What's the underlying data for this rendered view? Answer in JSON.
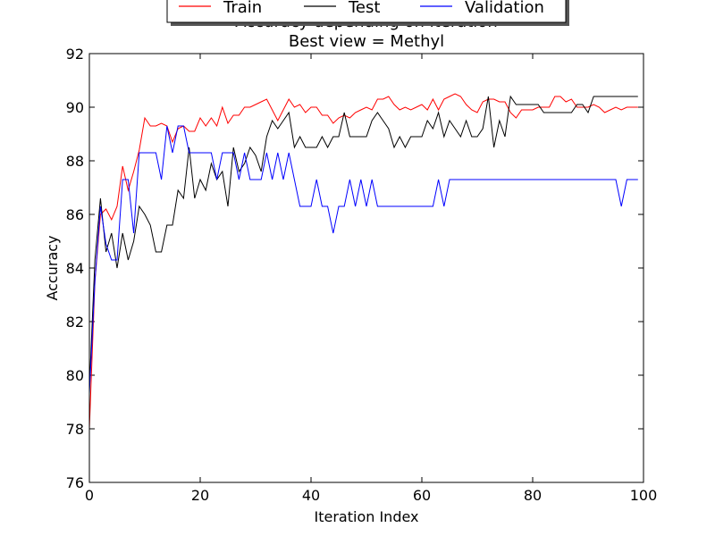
{
  "chart_data": {
    "type": "line",
    "title": "Accuracy depending on iteration",
    "subtitle": "Best view = Methyl",
    "xlabel": "Iteration Index",
    "ylabel": "Accuracy",
    "xlim": [
      0,
      100
    ],
    "ylim": [
      76,
      92
    ],
    "xticks": [
      0,
      20,
      40,
      60,
      80,
      100
    ],
    "yticks": [
      76,
      78,
      80,
      82,
      84,
      86,
      88,
      90,
      92
    ],
    "grid": false,
    "legend_position": "top-center",
    "series": [
      {
        "name": "Train",
        "color": "#ff0000",
        "values": [
          78.0,
          83.5,
          86.0,
          86.2,
          85.8,
          86.3,
          87.8,
          86.9,
          87.6,
          88.4,
          89.6,
          89.3,
          89.3,
          89.4,
          89.3,
          88.7,
          89.2,
          89.3,
          89.1,
          89.1,
          89.6,
          89.3,
          89.6,
          89.3,
          90.0,
          89.4,
          89.7,
          89.7,
          90.0,
          90.0,
          90.1,
          90.2,
          90.3,
          89.9,
          89.5,
          89.9,
          90.3,
          90.0,
          90.1,
          89.8,
          90.0,
          90.0,
          89.7,
          89.7,
          89.4,
          89.6,
          89.7,
          89.6,
          89.8,
          89.9,
          90.0,
          89.9,
          90.3,
          90.3,
          90.4,
          90.1,
          89.9,
          90.0,
          89.9,
          90.0,
          90.1,
          89.9,
          90.3,
          89.9,
          90.3,
          90.4,
          90.5,
          90.4,
          90.1,
          89.9,
          89.8,
          90.2,
          90.3,
          90.3,
          90.2,
          90.2,
          89.8,
          89.6,
          89.9,
          89.9,
          89.9,
          90.0,
          90.0,
          90.0,
          90.4,
          90.4,
          90.2,
          90.3,
          90.0,
          90.0,
          90.0,
          90.1,
          90.0,
          89.8,
          89.9,
          90.0,
          89.9,
          90.0,
          90.0,
          90.0
        ]
      },
      {
        "name": "Test",
        "color": "#000000",
        "values": [
          79.5,
          84.3,
          86.6,
          84.6,
          85.3,
          84.0,
          85.3,
          84.3,
          85.0,
          86.3,
          86.0,
          85.6,
          84.6,
          84.6,
          85.6,
          85.6,
          86.9,
          86.6,
          88.5,
          86.6,
          87.3,
          86.9,
          87.9,
          87.3,
          87.6,
          86.3,
          88.5,
          87.6,
          87.9,
          88.5,
          88.2,
          87.6,
          88.9,
          89.5,
          89.2,
          89.5,
          89.8,
          88.5,
          88.9,
          88.5,
          88.5,
          88.5,
          88.9,
          88.5,
          88.9,
          88.9,
          89.8,
          88.9,
          88.9,
          88.9,
          88.9,
          89.5,
          89.8,
          89.5,
          89.2,
          88.5,
          88.9,
          88.5,
          88.9,
          88.9,
          88.9,
          89.5,
          89.2,
          89.8,
          88.9,
          89.5,
          89.2,
          88.9,
          89.5,
          88.9,
          88.9,
          89.2,
          90.4,
          88.5,
          89.5,
          88.9,
          90.4,
          90.1,
          90.1,
          90.1,
          90.1,
          90.1,
          89.8,
          89.8,
          89.8,
          89.8,
          89.8,
          89.8,
          90.1,
          90.1,
          89.8,
          90.4,
          90.4,
          90.4,
          90.4,
          90.4,
          90.4,
          90.4,
          90.4,
          90.4
        ]
      },
      {
        "name": "Validation",
        "color": "#0000ff",
        "values": [
          79.3,
          83.5,
          86.3,
          84.9,
          84.3,
          84.3,
          87.3,
          87.3,
          85.3,
          88.3,
          88.3,
          88.3,
          88.3,
          87.3,
          89.3,
          88.3,
          89.3,
          89.3,
          88.3,
          88.3,
          88.3,
          88.3,
          88.3,
          87.3,
          88.3,
          88.3,
          88.3,
          87.3,
          88.3,
          87.3,
          87.3,
          87.3,
          88.3,
          87.3,
          88.3,
          87.3,
          88.3,
          87.3,
          86.3,
          86.3,
          86.3,
          87.3,
          86.3,
          86.3,
          85.3,
          86.3,
          86.3,
          87.3,
          86.3,
          87.3,
          86.3,
          87.3,
          86.3,
          86.3,
          86.3,
          86.3,
          86.3,
          86.3,
          86.3,
          86.3,
          86.3,
          86.3,
          86.3,
          87.3,
          86.3,
          87.3,
          87.3,
          87.3,
          87.3,
          87.3,
          87.3,
          87.3,
          87.3,
          87.3,
          87.3,
          87.3,
          87.3,
          87.3,
          87.3,
          87.3,
          87.3,
          87.3,
          87.3,
          87.3,
          87.3,
          87.3,
          87.3,
          87.3,
          87.3,
          87.3,
          87.3,
          87.3,
          87.3,
          87.3,
          87.3,
          87.3,
          86.3,
          87.3,
          87.3,
          87.3
        ]
      }
    ]
  }
}
